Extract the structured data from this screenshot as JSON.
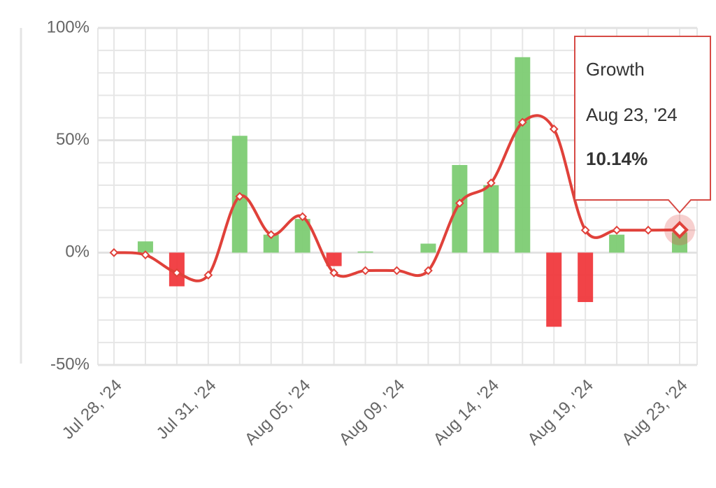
{
  "chart_data": {
    "type": "combo",
    "categories": [
      "Jul 28, '24",
      null,
      null,
      "Jul 31, '24",
      null,
      null,
      "Aug 05, '24",
      null,
      null,
      "Aug 09, '24",
      null,
      null,
      "Aug 14, '24",
      null,
      null,
      "Aug 19, '24",
      null,
      null,
      "Aug 23, '24"
    ],
    "series": [
      {
        "type": "bar",
        "positive_color": "#7dcc73",
        "negative_color": "#f0393d",
        "values": [
          0,
          5,
          -15,
          0,
          52,
          8,
          15,
          -6,
          0.5,
          0,
          4,
          39,
          30,
          87,
          -33,
          -22,
          8,
          0,
          9
        ]
      },
      {
        "type": "line",
        "color": "#e0413a",
        "values": [
          0,
          -1,
          -9,
          -10,
          25,
          8,
          16,
          -9,
          -8,
          -8,
          -8,
          22,
          31,
          58,
          55,
          10,
          10,
          10,
          10.14
        ]
      }
    ],
    "ylim": [
      -50,
      100
    ],
    "yticks": [
      {
        "value": -50,
        "label": "-50%"
      },
      {
        "value": 0,
        "label": "0%"
      },
      {
        "value": 50,
        "label": "50%"
      },
      {
        "value": 100,
        "label": "100%"
      }
    ],
    "minor_yticks": [
      -40,
      -30,
      -20,
      -10,
      10,
      20,
      30,
      40,
      60,
      70,
      80,
      90
    ],
    "grid": true,
    "tooltip": {
      "title": "Growth",
      "x_label": "Aug 23, '24",
      "value": 10.14,
      "label": "10.14%"
    }
  }
}
